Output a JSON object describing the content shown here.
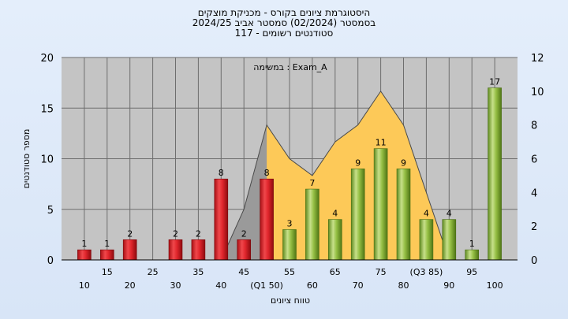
{
  "title_lines": [
    "היסטוגרמת ציונים בקורס - מכניקת מוצקים",
    "בסמסטר  (02/2024)  סמסטר אביב 2024/25",
    "סטודנטים רשומים - 117"
  ],
  "chart_data": {
    "type": "bar",
    "annotation": "במשימה : Exam_A",
    "ylabel": "מספר סטודנטים",
    "xlabel": "טווח ציונים",
    "ylim": [
      0,
      20
    ],
    "yticks": [
      0,
      5,
      10,
      15,
      20
    ],
    "y2lim": [
      0,
      12
    ],
    "y2ticks": [
      0,
      2,
      4,
      6,
      8,
      10,
      12
    ],
    "grid": true,
    "x_tick_labels_upper": [
      "15",
      "25",
      "35",
      "45",
      "55",
      "65",
      "75",
      "(Q3 85)",
      "95"
    ],
    "x_tick_labels_lower": [
      "10",
      "20",
      "30",
      "40",
      "(Q1 50)",
      "60",
      "70",
      "80",
      "90",
      "100"
    ],
    "bars": [
      {
        "x": 10,
        "value": 1,
        "color": "red"
      },
      {
        "x": 15,
        "value": 1,
        "color": "red"
      },
      {
        "x": 20,
        "value": 2,
        "color": "red"
      },
      {
        "x": 25,
        "value": 0,
        "color": "red"
      },
      {
        "x": 30,
        "value": 2,
        "color": "red"
      },
      {
        "x": 35,
        "value": 2,
        "color": "red"
      },
      {
        "x": 40,
        "value": 8,
        "color": "red"
      },
      {
        "x": 45,
        "value": 2,
        "color": "red"
      },
      {
        "x": 50,
        "value": 8,
        "color": "red"
      },
      {
        "x": 55,
        "value": 3,
        "color": "green"
      },
      {
        "x": 60,
        "value": 7,
        "color": "green"
      },
      {
        "x": 65,
        "value": 4,
        "color": "green"
      },
      {
        "x": 70,
        "value": 9,
        "color": "green"
      },
      {
        "x": 75,
        "value": 11,
        "color": "green"
      },
      {
        "x": 80,
        "value": 9,
        "color": "green"
      },
      {
        "x": 85,
        "value": 4,
        "color": "green"
      },
      {
        "x": 90,
        "value": 4,
        "color": "green"
      },
      {
        "x": 95,
        "value": 1,
        "color": "green"
      },
      {
        "x": 100,
        "value": 17,
        "color": "green"
      }
    ],
    "bar_labels": [
      "1",
      "1",
      "2",
      "",
      "2",
      "2",
      "8",
      "2",
      "8",
      "3",
      "7",
      "4",
      "9",
      "11",
      "9",
      "4",
      "4",
      "1",
      "17"
    ],
    "area_series": {
      "axis": "right",
      "x": [
        40,
        45,
        50,
        55,
        60,
        65,
        70,
        75,
        80,
        85,
        90
      ],
      "values": [
        0,
        3,
        8,
        6,
        5,
        7,
        8,
        10,
        8,
        4,
        0
      ],
      "highlight_from_x": 50,
      "colors": {
        "base": "#9a9a9a",
        "highlight": "#fdc958"
      }
    },
    "colors": {
      "red": "#e0262c",
      "green": "#8fba3e",
      "plot_bg": "#c4c4c4",
      "grid": "#6e6e6e"
    }
  }
}
